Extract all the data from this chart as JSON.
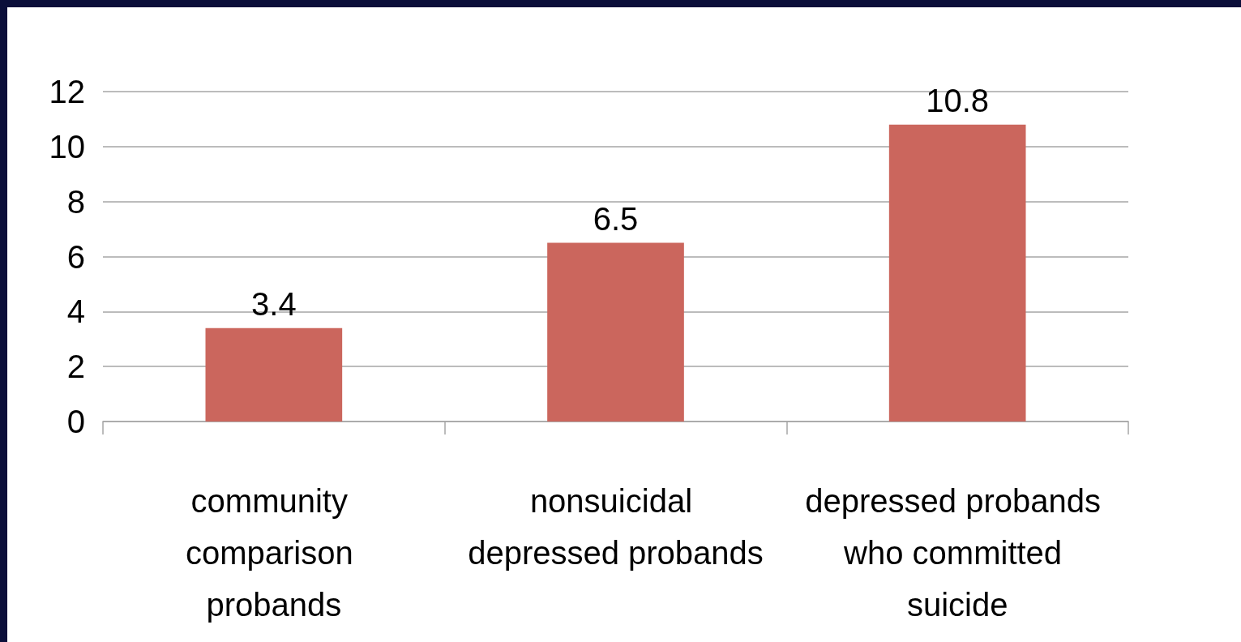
{
  "chart_data": {
    "type": "bar",
    "categories": [
      "community comparison probands",
      "nonsuicidal depressed probands",
      "depressed probands who committed suicide"
    ],
    "values": [
      3.4,
      6.5,
      10.8
    ],
    "color": "#cb665d",
    "ylim": [
      0,
      12
    ],
    "yticks": [
      0,
      2,
      4,
      6,
      8,
      10,
      12
    ],
    "grid": "y",
    "data_labels": true
  }
}
